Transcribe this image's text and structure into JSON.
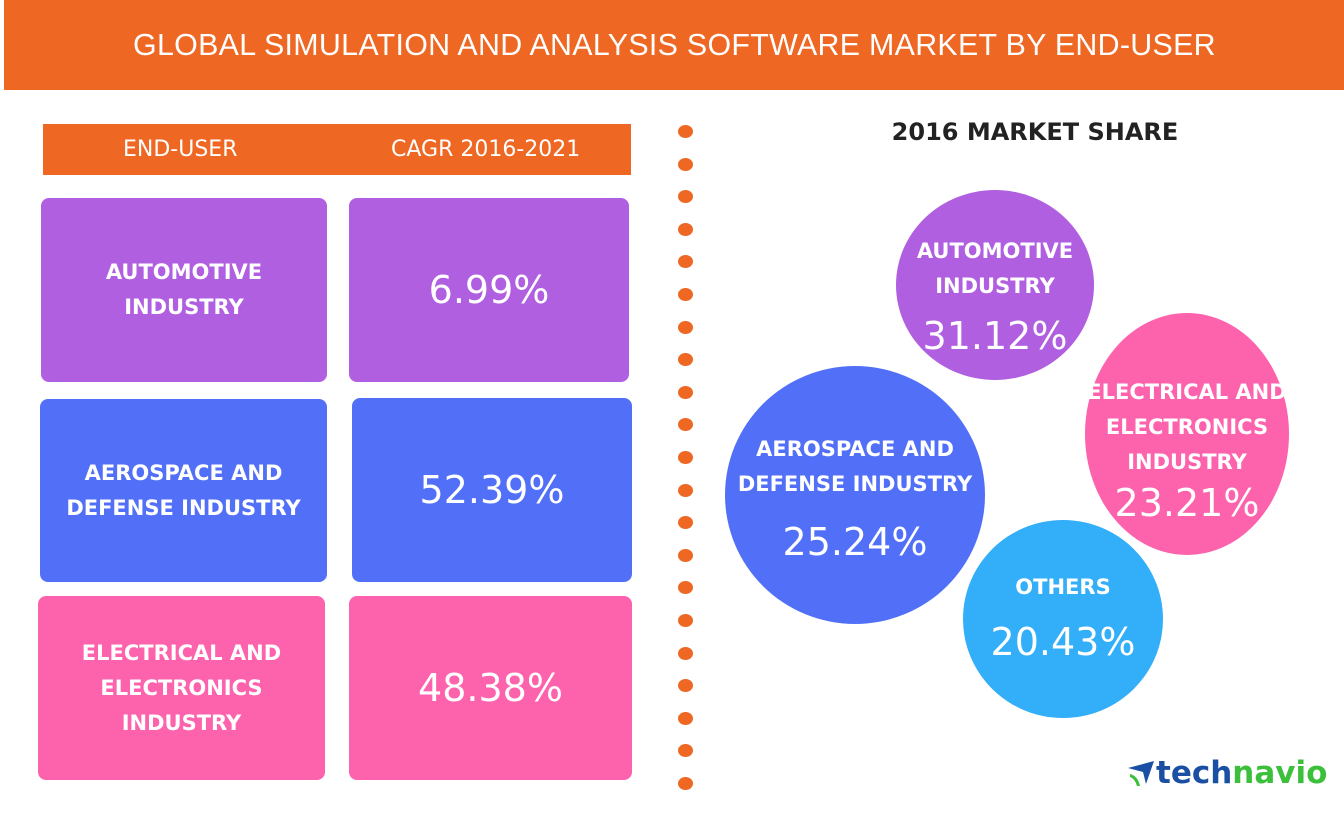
{
  "title": "GLOBAL SIMULATION AND ANALYSIS SOFTWARE MARKET BY END-USER",
  "table": {
    "header_enduser": "END-USER",
    "header_cagr": "CAGR 2016-2021",
    "rows": [
      {
        "label_lines": [
          "AUTOMOTIVE",
          "INDUSTRY"
        ],
        "cagr": "6.99%",
        "color": "#b05fe0"
      },
      {
        "label_lines": [
          "AEROSPACE AND",
          "DEFENSE INDUSTRY"
        ],
        "cagr": "52.39%",
        "color": "#5170f7"
      },
      {
        "label_lines": [
          "ELECTRICAL AND",
          "ELECTRONICS",
          "INDUSTRY"
        ],
        "cagr": "48.38%",
        "color": "#fd63ad"
      }
    ]
  },
  "market_share": {
    "title": "2016 MARKET SHARE",
    "items": [
      {
        "label_lines": [
          "AUTOMOTIVE",
          "INDUSTRY"
        ],
        "value": "31.12%",
        "color": "#b05fe0"
      },
      {
        "label_lines": [
          "ELECTRICAL AND",
          "ELECTRONICS",
          "INDUSTRY"
        ],
        "value": "23.21%",
        "color": "#fd63ad"
      },
      {
        "label_lines": [
          "AEROSPACE AND",
          "DEFENSE INDUSTRY"
        ],
        "value": "25.24%",
        "color": "#5170f7"
      },
      {
        "label_lines": [
          "OTHERS"
        ],
        "value": "20.43%",
        "color": "#33aef8"
      }
    ]
  },
  "brand": {
    "part1": "tech",
    "part2": "navio",
    "accent_blue": "#1b4fa3",
    "accent_green": "#3cc03c"
  },
  "divider_color": "#ee6723",
  "chart_data": [
    {
      "type": "table",
      "title": "CAGR 2016-2021",
      "categories": [
        "AUTOMOTIVE INDUSTRY",
        "AEROSPACE AND DEFENSE INDUSTRY",
        "ELECTRICAL AND ELECTRONICS INDUSTRY"
      ],
      "values": [
        6.99,
        52.39,
        48.38
      ],
      "unit": "%"
    },
    {
      "type": "pie",
      "title": "2016 MARKET SHARE",
      "categories": [
        "AUTOMOTIVE INDUSTRY",
        "ELECTRICAL AND ELECTRONICS INDUSTRY",
        "AEROSPACE AND DEFENSE INDUSTRY",
        "OTHERS"
      ],
      "values": [
        31.12,
        23.21,
        25.24,
        20.43
      ],
      "unit": "%"
    }
  ]
}
